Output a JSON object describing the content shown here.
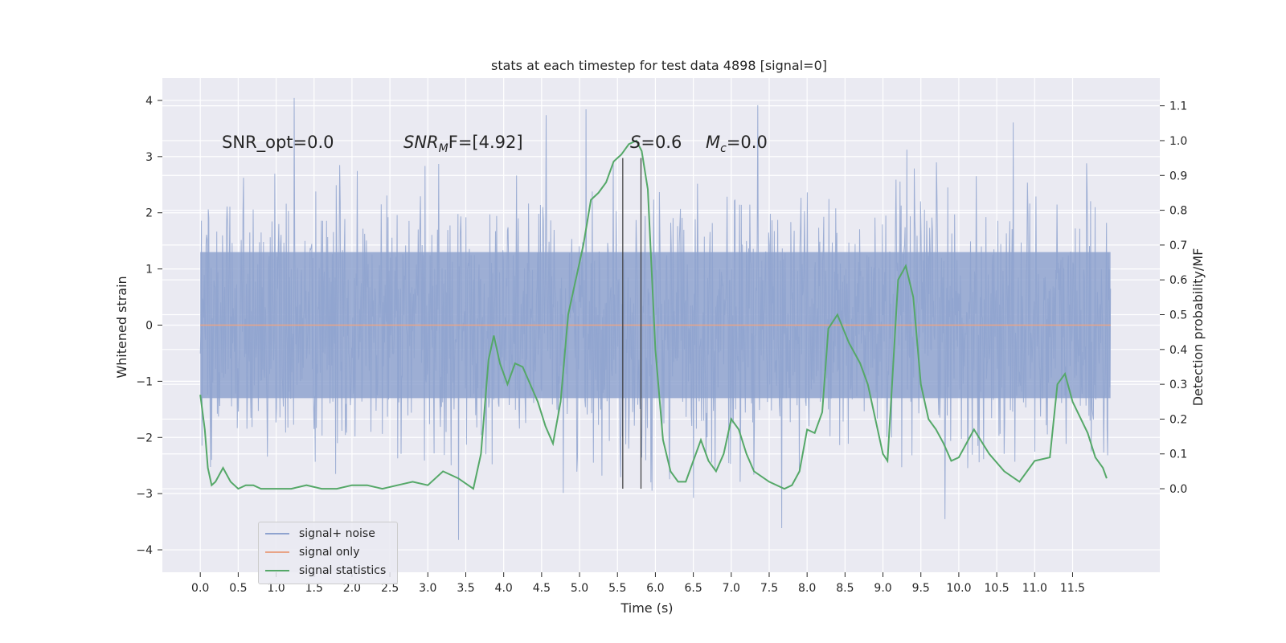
{
  "chart_data": {
    "type": "line",
    "title": "stats at each timestep for test data 4898 [signal=0]",
    "xlabel": "Time (s)",
    "ylabel": "Whitened strain",
    "y2label": "Detection probability/MF",
    "xlim": [
      -0.5,
      12.65
    ],
    "ylim": [
      -4.4,
      4.4
    ],
    "y2lim": [
      -0.24,
      1.18
    ],
    "xticks": [
      0.0,
      0.5,
      1.0,
      1.5,
      2.0,
      2.5,
      3.0,
      3.5,
      4.0,
      4.5,
      5.0,
      5.5,
      6.0,
      6.5,
      7.0,
      7.5,
      8.0,
      8.5,
      9.0,
      9.5,
      10.0,
      10.5,
      11.0,
      11.5
    ],
    "xtick_labels": [
      "0.0",
      "0.5",
      "1.0",
      "1.5",
      "2.0",
      "2.5",
      "3.0",
      "3.5",
      "4.0",
      "4.5",
      "5.0",
      "5.5",
      "6.0",
      "6.5",
      "7.0",
      "7.5",
      "8.0",
      "8.5",
      "9.0",
      "9.5",
      "10.0",
      "10.5",
      "11.0",
      "11.5"
    ],
    "yticks": [
      -4,
      -3,
      -2,
      -1,
      0,
      1,
      2,
      3,
      4
    ],
    "ytick_labels": [
      "−4",
      "−3",
      "−2",
      "−1",
      "0",
      "1",
      "2",
      "3",
      "4"
    ],
    "y2ticks": [
      0.0,
      0.1,
      0.2,
      0.3,
      0.4,
      0.5,
      0.6,
      0.7,
      0.8,
      0.9,
      1.0,
      1.1
    ],
    "y2tick_labels": [
      "0.0",
      "0.1",
      "0.2",
      "0.3",
      "0.4",
      "0.5",
      "0.6",
      "0.7",
      "0.8",
      "0.9",
      "1.0",
      "1.1"
    ],
    "grid": true,
    "legend": {
      "placement": "lower-left",
      "entries": [
        "signal+ noise",
        "signal only",
        "signal statistics"
      ]
    },
    "annotations": {
      "snr_opt": "SNR_opt=0.0",
      "snr_mf_main": "SNR",
      "snr_mf_sub": "M",
      "snr_mf_tail": "F=[4.92]",
      "s_main": "S",
      "s_tail": "=0.6",
      "mc_main": "M",
      "mc_sub": "c",
      "mc_tail": "=0.0"
    },
    "vertical_lines_x": [
      5.57,
      5.81
    ],
    "series": [
      {
        "name": "signal+ noise",
        "color": "#8fa3cf",
        "x_range": [
          0.0,
          12.0
        ],
        "typical_envelope": [
          -2.0,
          2.3
        ],
        "extremes": [
          -3.9,
          4.1
        ]
      },
      {
        "name": "signal only",
        "color": "#e8a487",
        "x": [
          0.0,
          12.0
        ],
        "y": [
          0.0,
          0.0
        ]
      },
      {
        "name": "signal statistics",
        "color": "#55a868",
        "axis": "right",
        "x": [
          0.0,
          0.06,
          0.1,
          0.15,
          0.2,
          0.3,
          0.4,
          0.5,
          0.6,
          0.7,
          0.8,
          0.9,
          1.0,
          1.2,
          1.4,
          1.6,
          1.8,
          2.0,
          2.2,
          2.4,
          2.6,
          2.8,
          3.0,
          3.2,
          3.4,
          3.6,
          3.7,
          3.8,
          3.87,
          3.95,
          4.05,
          4.15,
          4.25,
          4.35,
          4.45,
          4.55,
          4.65,
          4.75,
          4.85,
          4.95,
          5.05,
          5.15,
          5.25,
          5.35,
          5.45,
          5.55,
          5.65,
          5.75,
          5.82,
          5.9,
          6.0,
          6.1,
          6.2,
          6.3,
          6.4,
          6.5,
          6.6,
          6.7,
          6.8,
          6.9,
          7.0,
          7.1,
          7.2,
          7.3,
          7.5,
          7.7,
          7.8,
          7.9,
          8.0,
          8.1,
          8.2,
          8.28,
          8.4,
          8.55,
          8.7,
          8.8,
          8.9,
          9.0,
          9.06,
          9.12,
          9.2,
          9.3,
          9.4,
          9.5,
          9.6,
          9.7,
          9.8,
          9.9,
          10.0,
          10.2,
          10.4,
          10.6,
          10.8,
          11.0,
          11.2,
          11.3,
          11.4,
          11.5,
          11.7,
          11.8,
          11.9,
          11.95
        ],
        "y": [
          0.27,
          0.17,
          0.06,
          0.01,
          0.02,
          0.06,
          0.02,
          0.0,
          0.01,
          0.01,
          0.0,
          0.0,
          0.0,
          0.0,
          0.01,
          0.0,
          0.0,
          0.01,
          0.01,
          0.0,
          0.01,
          0.02,
          0.01,
          0.05,
          0.03,
          0.0,
          0.1,
          0.37,
          0.44,
          0.36,
          0.3,
          0.36,
          0.35,
          0.3,
          0.25,
          0.18,
          0.13,
          0.25,
          0.5,
          0.6,
          0.7,
          0.83,
          0.85,
          0.88,
          0.94,
          0.96,
          0.99,
          1.0,
          0.97,
          0.86,
          0.4,
          0.14,
          0.05,
          0.02,
          0.02,
          0.08,
          0.14,
          0.08,
          0.05,
          0.1,
          0.2,
          0.17,
          0.1,
          0.05,
          0.02,
          0.0,
          0.01,
          0.05,
          0.17,
          0.16,
          0.22,
          0.46,
          0.5,
          0.42,
          0.36,
          0.3,
          0.2,
          0.1,
          0.08,
          0.3,
          0.6,
          0.64,
          0.55,
          0.3,
          0.2,
          0.17,
          0.13,
          0.08,
          0.09,
          0.17,
          0.1,
          0.05,
          0.02,
          0.08,
          0.09,
          0.3,
          0.33,
          0.25,
          0.16,
          0.09,
          0.06,
          0.03
        ]
      }
    ]
  }
}
